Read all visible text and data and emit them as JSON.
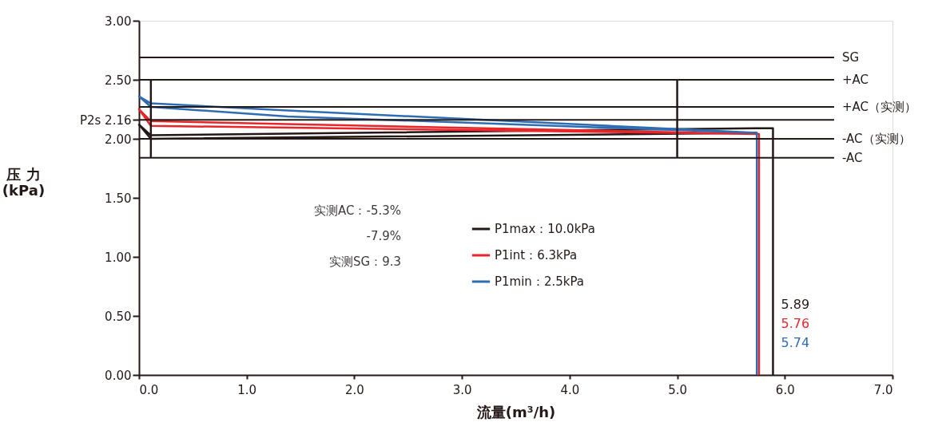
{
  "chart_data": {
    "type": "line",
    "xlabel": "流量(m³/h)",
    "ylabel": "压 力\n(kPa)",
    "xlim": [
      0,
      7
    ],
    "ylim": [
      0,
      3
    ],
    "xticks": [
      {
        "value": 0,
        "label": "0.0"
      },
      {
        "value": 1,
        "label": "1.0"
      },
      {
        "value": 2,
        "label": "2.0"
      },
      {
        "value": 3,
        "label": "3.0"
      },
      {
        "value": 4,
        "label": "4.0"
      },
      {
        "value": 5,
        "label": "5.0"
      },
      {
        "value": 6,
        "label": "6.0"
      },
      {
        "value": 7,
        "label": "7.0"
      }
    ],
    "yticks": [
      {
        "value": 0,
        "label": "0.00"
      },
      {
        "value": 0.5,
        "label": "0.50"
      },
      {
        "value": 1,
        "label": "1.00"
      },
      {
        "value": 1.5,
        "label": "1.50"
      },
      {
        "value": 2,
        "label": "2.00"
      },
      {
        "value": 2.16,
        "label": "P2s 2.16"
      },
      {
        "value": 2.5,
        "label": "2.50"
      },
      {
        "value": 3,
        "label": "3.00"
      }
    ],
    "series": [
      {
        "name": "P1max：10.0kPa",
        "color": "#231815",
        "x": [
          5.74,
          0.11,
          0,
          0.11,
          5.74,
          5.89,
          5.89
        ],
        "values": [
          2.05,
          2.0,
          2.12,
          2.03,
          2.09,
          2.09,
          0
        ]
      },
      {
        "name": "P1int：6.3kPa",
        "color": "#e8262a",
        "x": [
          5.76,
          0.11,
          0,
          0.11,
          5.76,
          5.76
        ],
        "values": [
          2.04,
          2.11,
          2.25,
          2.15,
          2.04,
          0
        ]
      },
      {
        "name": "P1min：2.5kPa",
        "color": "#2e6db4",
        "x": [
          5.74,
          1.38,
          0.11,
          0,
          0.11,
          1.38,
          5.74,
          5.74
        ],
        "values": [
          2.05,
          2.19,
          2.27,
          2.36,
          2.3,
          2.24,
          2.05,
          0
        ]
      },
      {
        "color": "#231815",
        "x": [
          0.11,
          0.11
        ],
        "values": [
          1.84,
          2.5
        ]
      },
      {
        "color": "#231815",
        "x": [
          5.0,
          5.0
        ],
        "values": [
          1.84,
          2.5
        ]
      }
    ],
    "ref_lines": [
      {
        "axis": "y",
        "value": 2.69,
        "label": "SG"
      },
      {
        "axis": "y",
        "value": 2.5,
        "label": "+AC"
      },
      {
        "axis": "y",
        "value": 2.27,
        "label": "+AC（实测）"
      },
      {
        "axis": "y",
        "value": 2.16
      },
      {
        "axis": "y",
        "value": 2.0,
        "label": "-AC（实测）"
      },
      {
        "axis": "y",
        "value": 1.84,
        "label": "-AC"
      }
    ],
    "annotations": [
      "实测AC：-5.3%",
      "-7.9%",
      "实测SG：9.3",
      "5.89",
      "5.76",
      "5.74"
    ],
    "legend": "center",
    "line_style": "solid",
    "marker": "none"
  }
}
